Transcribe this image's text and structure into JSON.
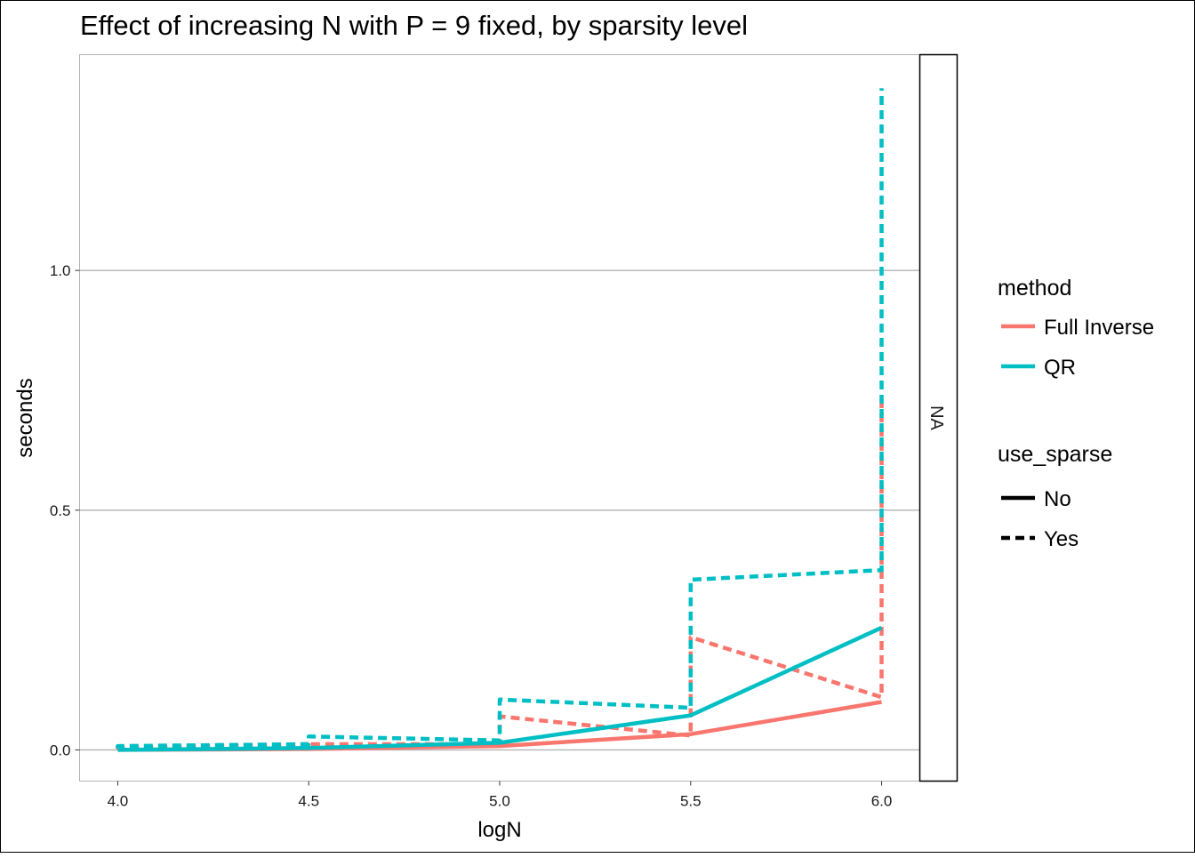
{
  "chart_data": {
    "type": "line",
    "title": "Effect of increasing N with P = 9 fixed, by sparsity level",
    "xlabel": "logN",
    "ylabel": "seconds",
    "xlim": [
      3.9,
      6.1
    ],
    "ylim": [
      -0.065,
      1.45
    ],
    "x_ticks": [
      4.0,
      4.5,
      5.0,
      5.5,
      6.0
    ],
    "x_tick_labels": [
      "4.0",
      "4.5",
      "5.0",
      "5.5",
      "6.0"
    ],
    "y_ticks": [
      0.0,
      0.5,
      1.0
    ],
    "y_tick_labels": [
      "0.0",
      "0.5",
      "1.0"
    ],
    "grid": {
      "horizontal": true,
      "vertical": false
    },
    "facet_strip_label": "NA",
    "legend_position": "right",
    "legend": {
      "color": {
        "title": "method",
        "entries": [
          {
            "label": "Full Inverse",
            "color": "#F8766D"
          },
          {
            "label": "QR",
            "color": "#00BFC4"
          }
        ]
      },
      "linetype": {
        "title": "use_sparse",
        "entries": [
          {
            "label": "No",
            "dash": "solid"
          },
          {
            "label": "Yes",
            "dash": "dashed"
          }
        ]
      }
    },
    "series": [
      {
        "method": "Full Inverse",
        "use_sparse": "No",
        "color": "#F8766D",
        "dash": "solid",
        "points": [
          [
            4.0,
            0.0
          ],
          [
            4.5,
            0.002
          ],
          [
            5.0,
            0.008
          ],
          [
            5.5,
            0.033
          ],
          [
            6.0,
            0.1
          ]
        ]
      },
      {
        "method": "Full Inverse",
        "use_sparse": "Yes",
        "color": "#F8766D",
        "dash": "dashed",
        "points": [
          [
            4.0,
            0.008
          ],
          [
            4.0,
            0.004
          ],
          [
            4.5,
            0.012
          ],
          [
            4.5,
            0.016
          ],
          [
            4.5,
            0.012
          ],
          [
            5.0,
            0.012
          ],
          [
            5.0,
            0.07
          ],
          [
            5.5,
            0.03
          ],
          [
            5.5,
            0.235
          ],
          [
            6.0,
            0.11
          ],
          [
            6.0,
            0.74
          ]
        ]
      },
      {
        "method": "QR",
        "use_sparse": "No",
        "color": "#00BFC4",
        "dash": "solid",
        "points": [
          [
            4.0,
            0.0
          ],
          [
            4.5,
            0.004
          ],
          [
            5.0,
            0.015
          ],
          [
            5.5,
            0.072
          ],
          [
            6.0,
            0.255
          ]
        ]
      },
      {
        "method": "QR",
        "use_sparse": "Yes",
        "color": "#00BFC4",
        "dash": "dashed",
        "points": [
          [
            4.0,
            0.003
          ],
          [
            4.0,
            0.008
          ],
          [
            4.5,
            0.012
          ],
          [
            4.5,
            0.028
          ],
          [
            5.0,
            0.02
          ],
          [
            5.0,
            0.105
          ],
          [
            5.5,
            0.088
          ],
          [
            5.5,
            0.355
          ],
          [
            6.0,
            0.375
          ],
          [
            6.0,
            1.38
          ]
        ]
      }
    ]
  }
}
